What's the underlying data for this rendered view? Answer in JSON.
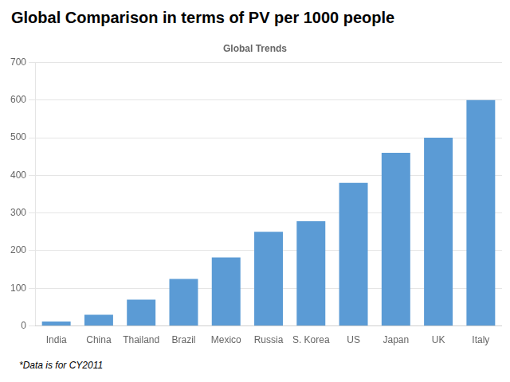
{
  "chart_data": {
    "type": "bar",
    "title": "Global Trends",
    "annotations": [
      "Global Comparison in terms of PV per 1000 people",
      "*Data is for CY2011"
    ],
    "categories": [
      "India",
      "China",
      "Thailand",
      "Brazil",
      "Mexico",
      "Russia",
      "S. Korea",
      "US",
      "Japan",
      "UK",
      "Italy"
    ],
    "values": [
      12,
      30,
      70,
      125,
      182,
      250,
      278,
      380,
      460,
      500,
      600
    ],
    "color": "#5b9bd5",
    "ylim": [
      0,
      700
    ],
    "yticks": [
      0,
      100,
      200,
      300,
      400,
      500,
      600,
      700
    ],
    "grid": true
  }
}
